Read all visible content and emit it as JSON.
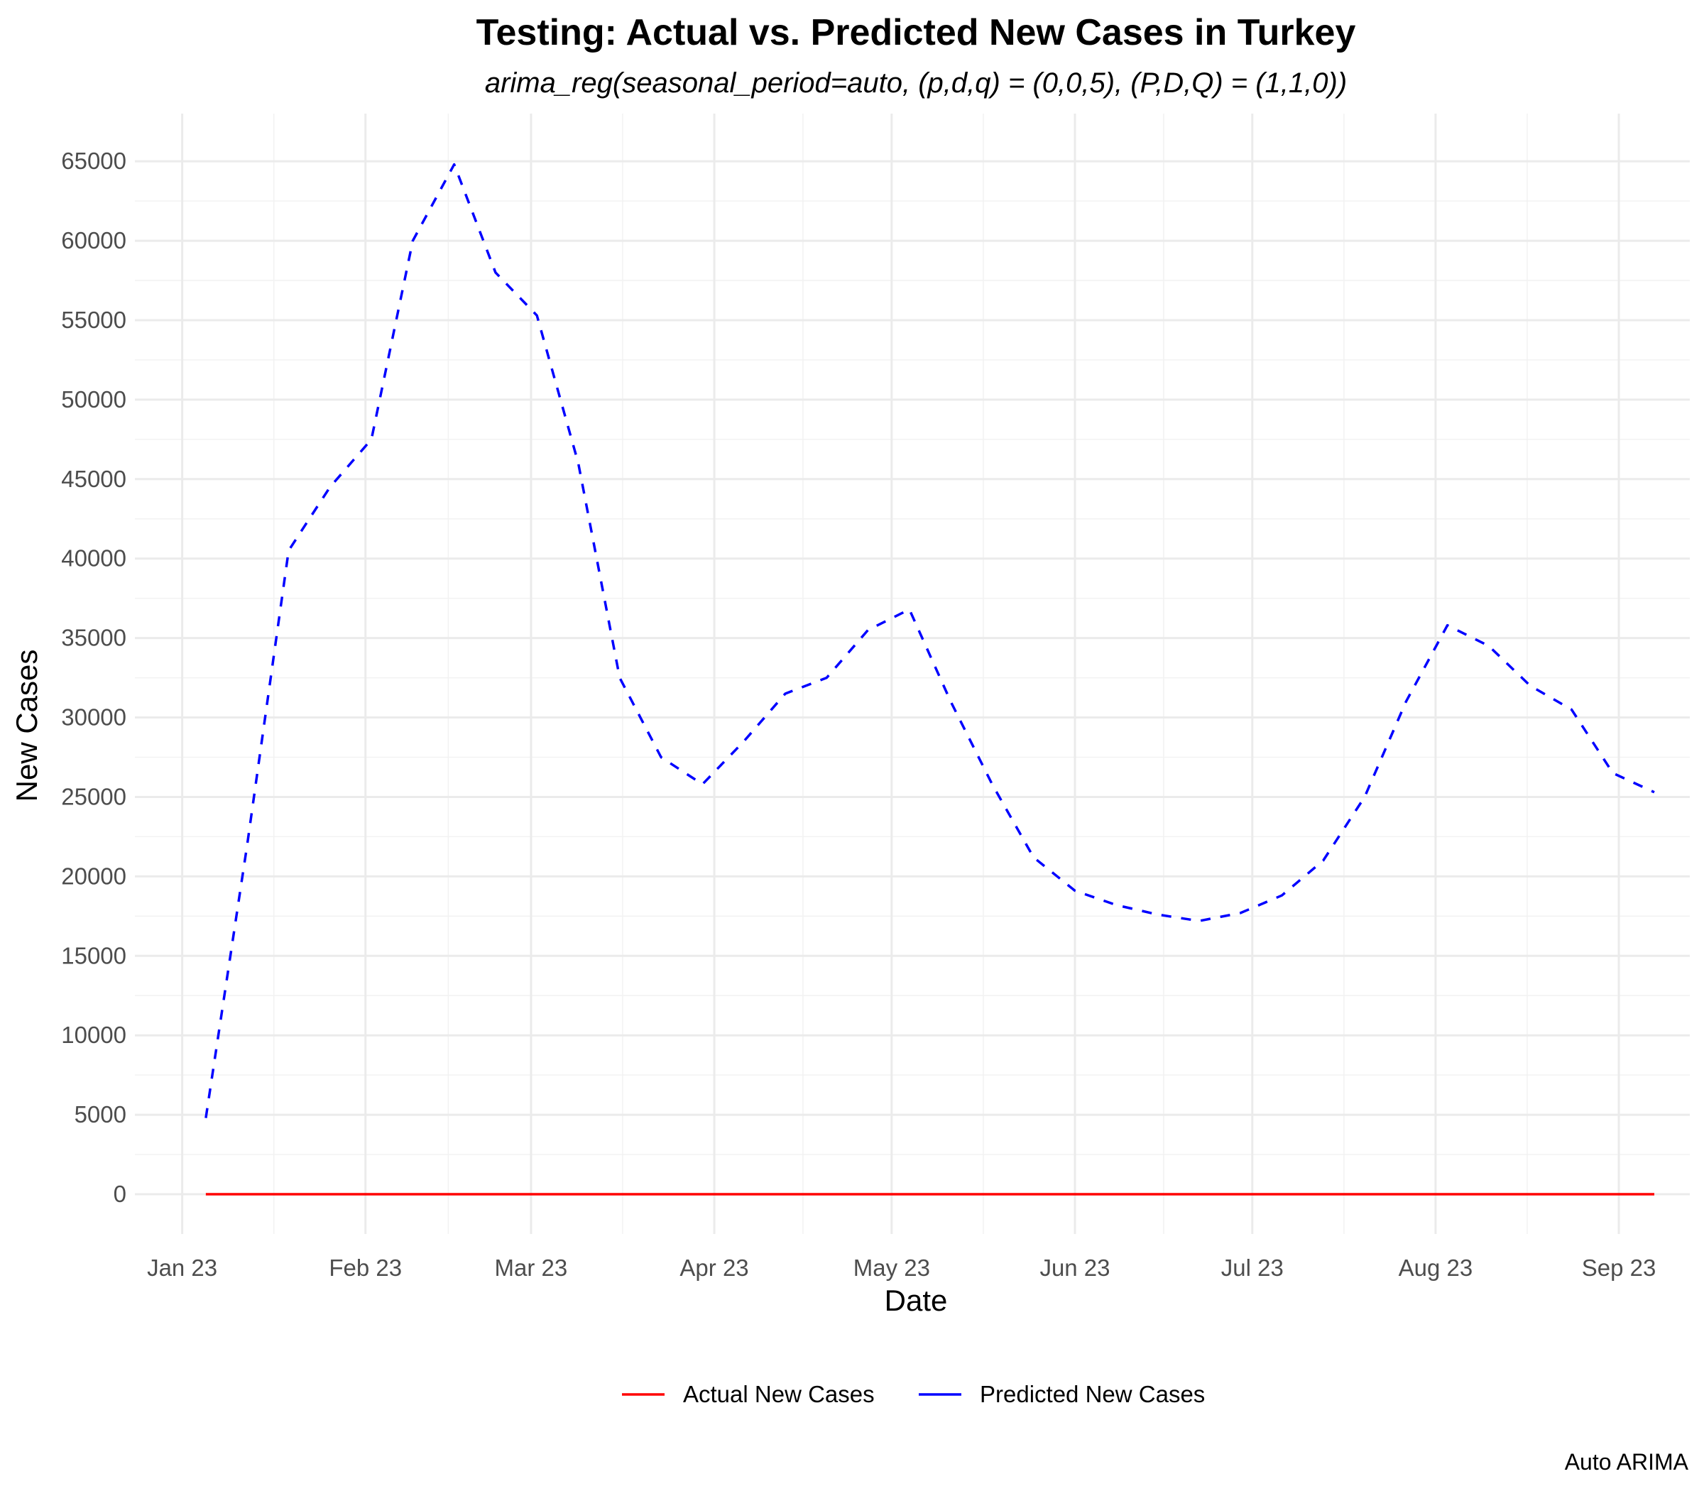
{
  "chart_data": {
    "type": "line",
    "title": "Testing: Actual vs. Predicted New Cases in Turkey",
    "subtitle": "arima_reg(seasonal_period=auto, (p,d,q) = (0,0,5), (P,D,Q) = (1,1,0))",
    "xlabel": "Date",
    "ylabel": "New Cases",
    "caption": "Auto ARIMA",
    "x_tick_labels": [
      "Jan 23",
      "Feb 23",
      "Mar 23",
      "Apr 23",
      "May 23",
      "Jun 23",
      "Jul 23",
      "Aug 23",
      "Sep 23"
    ],
    "x_ticks": [
      "2023-01-01",
      "2023-02-01",
      "2023-03-01",
      "2023-04-01",
      "2023-05-01",
      "2023-06-01",
      "2023-07-01",
      "2023-08-01",
      "2023-09-01"
    ],
    "y_ticks": [
      0,
      5000,
      10000,
      15000,
      20000,
      25000,
      30000,
      35000,
      40000,
      45000,
      50000,
      55000,
      60000,
      65000
    ],
    "y_tick_labels": [
      "0",
      "5000",
      "10000",
      "15000",
      "20000",
      "25000",
      "30000",
      "35000",
      "40000",
      "45000",
      "50000",
      "55000",
      "60000",
      "65000"
    ],
    "xlim": [
      "2022-12-24",
      "2023-09-13"
    ],
    "ylim": [
      -2500,
      68000
    ],
    "grid": true,
    "legend_position": "bottom",
    "series": [
      {
        "name": "Actual New Cases",
        "color": "#ff0000",
        "style": "solid",
        "x": [
          "2023-01-05",
          "2023-09-07"
        ],
        "y": [
          0,
          0
        ]
      },
      {
        "name": "Predicted New Cases",
        "color": "#0000ff",
        "style": "dashed",
        "x": [
          "2023-01-05",
          "2023-01-12",
          "2023-01-19",
          "2023-01-26",
          "2023-02-02",
          "2023-02-09",
          "2023-02-16",
          "2023-02-23",
          "2023-03-02",
          "2023-03-09",
          "2023-03-16",
          "2023-03-23",
          "2023-03-30",
          "2023-04-06",
          "2023-04-13",
          "2023-04-20",
          "2023-04-27",
          "2023-05-04",
          "2023-05-11",
          "2023-05-18",
          "2023-05-25",
          "2023-06-01",
          "2023-06-08",
          "2023-06-15",
          "2023-06-22",
          "2023-06-29",
          "2023-07-06",
          "2023-07-13",
          "2023-07-20",
          "2023-07-27",
          "2023-08-03",
          "2023-08-10",
          "2023-08-17",
          "2023-08-24",
          "2023-08-31",
          "2023-09-07"
        ],
        "y": [
          4800,
          22000,
          40500,
          44500,
          47500,
          60000,
          64800,
          58000,
          55300,
          46000,
          32500,
          27500,
          25800,
          28500,
          31500,
          32500,
          35500,
          36800,
          31000,
          25800,
          21200,
          19100,
          18200,
          17600,
          17200,
          17700,
          18800,
          21000,
          25000,
          31000,
          35800,
          34500,
          32000,
          30500,
          26500,
          25300
        ]
      }
    ]
  }
}
